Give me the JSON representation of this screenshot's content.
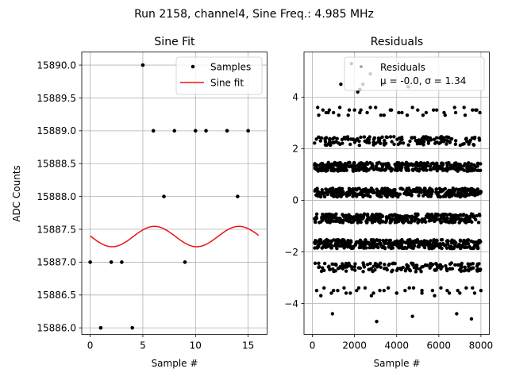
{
  "figure": {
    "suptitle": "Run 2158, channel4, Sine Freq.: 4.985 MHz"
  },
  "chart_data": [
    {
      "type": "scatter",
      "title": "Sine Fit",
      "xlabel": "Sample #",
      "ylabel": "ADC Counts",
      "xlim": [
        -0.8,
        16.8
      ],
      "ylim": [
        15885.9,
        15890.2
      ],
      "xticks": [
        0,
        5,
        10,
        15
      ],
      "yticks": [
        15886.0,
        15886.5,
        15887.0,
        15887.5,
        15888.0,
        15888.5,
        15889.0,
        15889.5,
        15890.0
      ],
      "ytick_labels": [
        "15886.0",
        "15886.5",
        "15887.0",
        "15887.5",
        "15888.0",
        "15888.5",
        "15889.0",
        "15889.5",
        "15890.0"
      ],
      "grid": true,
      "legend_position": "top-right",
      "series": [
        {
          "name": "Samples",
          "kind": "points",
          "color": "#000000",
          "x": [
            0,
            1,
            2,
            3,
            4,
            5,
            6,
            7,
            8,
            9,
            10,
            11,
            13,
            14,
            15
          ],
          "y": [
            15887,
            15886,
            15887,
            15887,
            15886,
            15890,
            15889,
            15888,
            15889,
            15887,
            15889,
            15889,
            15889,
            15888,
            15889
          ]
        },
        {
          "name": "Sine fit",
          "kind": "line",
          "color": "#ee1111",
          "offset": 15887.39,
          "amplitude": 0.155,
          "period": 8.03,
          "peak_x": 6.1,
          "x_range": [
            0,
            16
          ]
        }
      ]
    },
    {
      "type": "scatter",
      "title": "Residuals",
      "xlabel": "Sample #",
      "ylabel": "",
      "xlim": [
        -400,
        8400
      ],
      "ylim": [
        -5.2,
        5.75
      ],
      "xticks": [
        0,
        2000,
        4000,
        6000,
        8000
      ],
      "yticks": [
        -4,
        -2,
        0,
        2,
        4
      ],
      "ytick_labels": [
        "−4",
        "−2",
        "0",
        "2",
        "4"
      ],
      "grid": true,
      "legend_position": "top-right",
      "legend_label": "Residuals",
      "legend_stats": "μ = -0.0, σ = 1.34",
      "mu": -0.0,
      "sigma": 1.34,
      "color": "#000000",
      "bands": [
        {
          "center": 2.3,
          "spread": 0.17,
          "count": 160
        },
        {
          "center": 1.3,
          "spread": 0.17,
          "count": 380
        },
        {
          "center": 0.3,
          "spread": 0.17,
          "count": 380
        },
        {
          "center": -0.7,
          "spread": 0.17,
          "count": 380
        },
        {
          "center": -1.7,
          "spread": 0.17,
          "count": 380
        },
        {
          "center": -2.6,
          "spread": 0.17,
          "count": 160
        }
      ],
      "sparse_points": {
        "x": [
          300,
          500,
          650,
          800,
          1000,
          1300,
          1700,
          2000,
          2300,
          2600,
          3000,
          3400,
          3700,
          4100,
          4500,
          5000,
          5400,
          5900,
          6300,
          6800,
          7200,
          7600,
          7800,
          7950,
          200,
          550,
          900,
          1200,
          1500,
          1800,
          2100,
          2500,
          2900,
          3200,
          3600,
          4000,
          4400,
          4800,
          5200,
          5700,
          6100,
          6500,
          6900,
          7300,
          7700,
          8000,
          400,
          1000,
          1600,
          2200,
          2800,
          3400,
          4000,
          4600,
          5200,
          5800,
          6400,
          7000,
          7600,
          250,
          750,
          1250,
          1750,
          2250,
          2750,
          3250,
          3750,
          4250,
          4750,
          5250,
          5750,
          6250,
          6750,
          7250,
          7750,
          1850,
          2400,
          2750,
          3350,
          4550,
          1350,
          4750,
          6850,
          7550,
          2150,
          2250,
          950,
          3050
        ],
        "y": [
          3.3,
          3.5,
          3.4,
          3.5,
          3.4,
          3.6,
          3.3,
          3.5,
          3.5,
          3.4,
          3.6,
          3.3,
          3.5,
          3.4,
          3.3,
          3.5,
          3.4,
          3.5,
          3.3,
          3.4,
          3.6,
          3.5,
          3.5,
          3.4,
          -3.5,
          -3.4,
          -3.6,
          -3.5,
          -3.4,
          -3.6,
          -3.5,
          -3.4,
          -3.6,
          -3.5,
          -3.4,
          -3.6,
          -3.5,
          -3.4,
          -3.6,
          -3.5,
          -3.4,
          -3.6,
          -3.5,
          -3.4,
          -3.6,
          -3.5,
          -3.7,
          -3.5,
          -3.6,
          -3.4,
          -3.7,
          -3.5,
          -3.6,
          -3.4,
          -3.5,
          -3.7,
          -3.5,
          -3.6,
          -3.4,
          3.6,
          3.4,
          3.3,
          3.5,
          3.4,
          3.6,
          3.3,
          3.5,
          3.4,
          3.6,
          3.3,
          3.5,
          3.4,
          3.6,
          3.3,
          3.5,
          5.3,
          4.5,
          4.9,
          4.5,
          4.4,
          4.5,
          -4.5,
          -4.4,
          -4.6,
          4.2,
          4.3,
          -4.4,
          -4.7
        ]
      }
    }
  ]
}
